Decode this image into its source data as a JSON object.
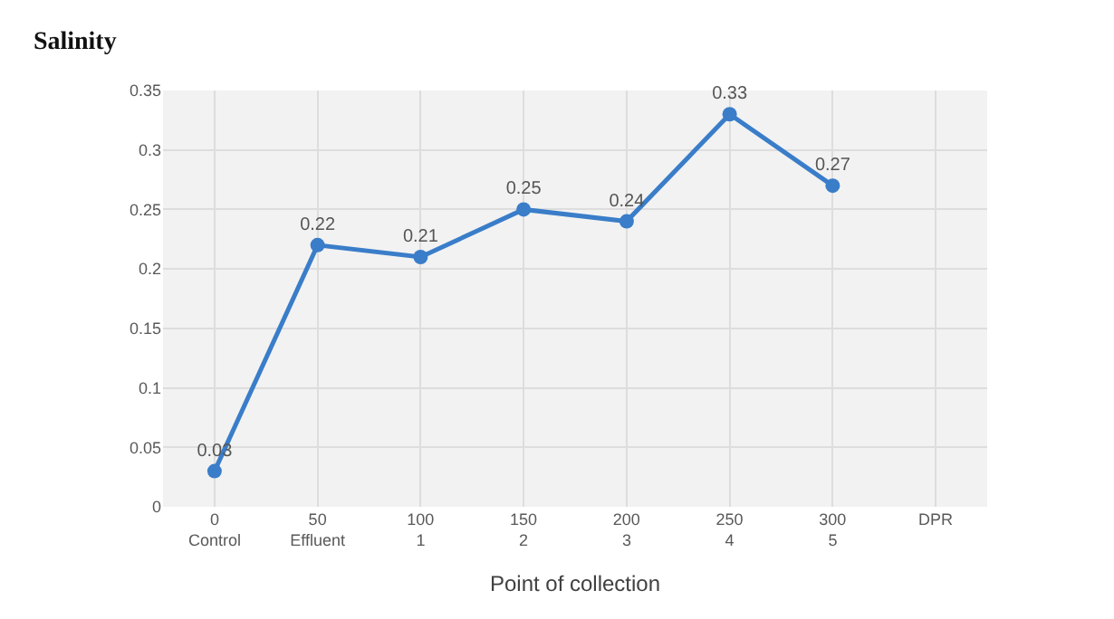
{
  "chart_data": {
    "type": "line",
    "title": "Salinity",
    "xlabel": "Point of collection",
    "categories": [
      "0\nControl",
      "50\nEffluent",
      "100\n1",
      "150\n2",
      "200\n3",
      "250\n4",
      "300\n5",
      "DPR"
    ],
    "series": [
      {
        "color": "#3a7dc9",
        "values": [
          0.03,
          0.22,
          0.21,
          0.25,
          0.24,
          0.33,
          0.27,
          null
        ]
      }
    ],
    "ylim": [
      0,
      0.35
    ],
    "yticks": [
      0,
      0.05,
      0.1,
      0.15,
      0.2,
      0.25,
      0.3,
      0.35
    ],
    "grid": true,
    "marker": "circle",
    "line_style": "solid",
    "data_labels": true
  }
}
